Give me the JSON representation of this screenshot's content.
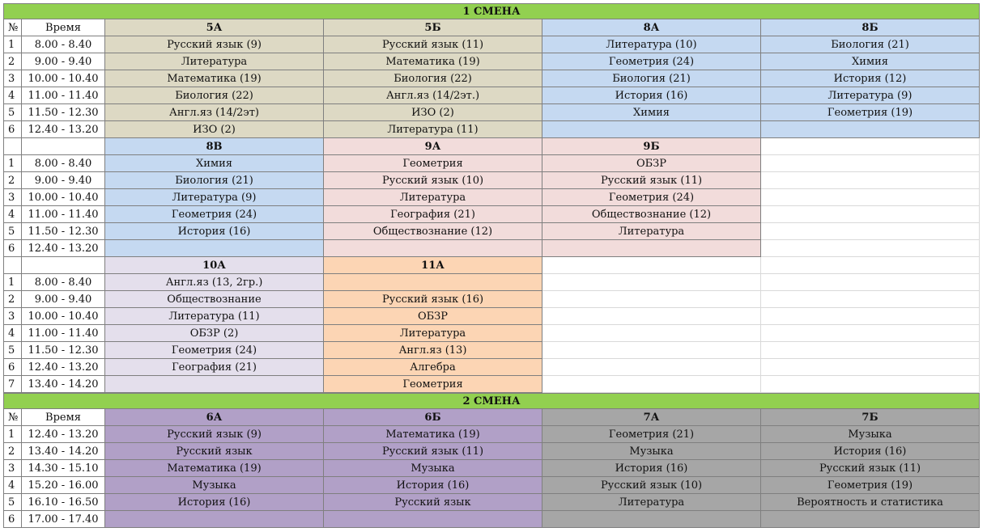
{
  "sections": [
    {
      "title": "1 СМЕНА",
      "color": "#92d050",
      "blocks": [
        {
          "number_label": "№",
          "time_label": "Время",
          "periods": [
            {
              "number": 1,
              "time": "8.00 - 8.40"
            },
            {
              "number": 2,
              "time": "9.00 - 9.40"
            },
            {
              "number": 3,
              "time": "10.00 - 10.40"
            },
            {
              "number": 4,
              "time": "11.00 - 11.40"
            },
            {
              "number": 5,
              "time": "11.50 - 12.30"
            },
            {
              "number": 6,
              "time": "12.40 - 13.20"
            }
          ],
          "classes": [
            {
              "name": "5А",
              "color": "#ddd9c4",
              "lessons": [
                "Русский язык (9)",
                "Литература",
                "Математика (19)",
                "Биология (22)",
                "Англ.яз (14/2эт)",
                "ИЗО (2)"
              ]
            },
            {
              "name": "5Б",
              "color": "#ddd9c4",
              "lessons": [
                "Русский язык (11)",
                "Математика (19)",
                "Биология (22)",
                "Англ.яз (14/2эт.)",
                "ИЗО (2)",
                "Литература (11)"
              ]
            },
            {
              "name": "8А",
              "color": "#c5d9f1",
              "lessons": [
                "Литература (10)",
                "Геометрия (24)",
                "Биология (21)",
                "История (16)",
                "Химия",
                null
              ]
            },
            {
              "name": "8Б",
              "color": "#c5d9f1",
              "lessons": [
                "Биология (21)",
                "Химия",
                "История (12)",
                "Литература (9)",
                "Геометрия (19)",
                null
              ]
            }
          ]
        },
        {
          "periods": [
            {
              "number": 1,
              "time": "8.00 - 8.40"
            },
            {
              "number": 2,
              "time": "9.00 - 9.40"
            },
            {
              "number": 3,
              "time": "10.00 - 10.40"
            },
            {
              "number": 4,
              "time": "11.00 - 11.40"
            },
            {
              "number": 5,
              "time": "11.50 - 12.30"
            },
            {
              "number": 6,
              "time": "12.40 - 13.20"
            }
          ],
          "classes": [
            {
              "name": "8В",
              "color": "#c5d9f1",
              "lessons": [
                "Химия",
                "Биология (21)",
                "Литература (9)",
                "Геометрия (24)",
                "История (16)",
                null
              ]
            },
            {
              "name": "9А",
              "color": "#f2dcdb",
              "lessons": [
                "Геометрия",
                "Русский язык (10)",
                "Литература",
                "География (21)",
                "Обществознание (12)",
                null
              ]
            },
            {
              "name": "9Б",
              "color": "#f2dcdb",
              "lessons": [
                "ОБЗР",
                "Русский язык (11)",
                "Геометрия (24)",
                "Обществознание (12)",
                "Литература",
                null
              ]
            }
          ]
        },
        {
          "periods": [
            {
              "number": 1,
              "time": "8.00 - 8.40"
            },
            {
              "number": 2,
              "time": "9.00 - 9.40"
            },
            {
              "number": 3,
              "time": "10.00 - 10.40"
            },
            {
              "number": 4,
              "time": "11.00 - 11.40"
            },
            {
              "number": 5,
              "time": "11.50 - 12.30"
            },
            {
              "number": 6,
              "time": "12.40 - 13.20"
            },
            {
              "number": 7,
              "time": "13.40 - 14.20"
            }
          ],
          "classes": [
            {
              "name": "10А",
              "color": "#e4dfec",
              "lessons": [
                "Англ.яз (13, 2гр.)",
                "Обществознание",
                "Литература (11)",
                "ОБЗР (2)",
                "Геометрия (24)",
                "География (21)",
                null
              ]
            },
            {
              "name": "11А",
              "color": "#fcd5b4",
              "lessons": [
                null,
                "Русский язык (16)",
                "ОБЗР",
                "Литература",
                "Англ.яз (13)",
                "Алгебра",
                "Геометрия"
              ]
            }
          ]
        }
      ]
    },
    {
      "title": "2 СМЕНА",
      "color": "#92d050",
      "blocks": [
        {
          "number_label": "№",
          "time_label": "Время",
          "periods": [
            {
              "number": 1,
              "time": "12.40 - 13.20"
            },
            {
              "number": 2,
              "time": "13.40 - 14.20"
            },
            {
              "number": 3,
              "time": "14.30 - 15.10"
            },
            {
              "number": 4,
              "time": "15.20 - 16.00"
            },
            {
              "number": 5,
              "time": "16.10 - 16.50"
            },
            {
              "number": 6,
              "time": "17.00 - 17.40"
            }
          ],
          "classes": [
            {
              "name": "6А",
              "color": "#b1a0c7",
              "lessons": [
                "Русский язык (9)",
                "Русский язык",
                "Математика (19)",
                "Музыка",
                "История (16)",
                null
              ]
            },
            {
              "name": "6Б",
              "color": "#b1a0c7",
              "lessons": [
                "Математика (19)",
                "Русский язык (11)",
                "Музыка",
                "История (16)",
                "Русский язык",
                null
              ]
            },
            {
              "name": "7А",
              "color": "#a6a6a6",
              "lessons": [
                "Геометрия (21)",
                "Музыка",
                "История (16)",
                "Русский язык (10)",
                "Литература",
                null
              ]
            },
            {
              "name": "7Б",
              "color": "#a6a6a6",
              "lessons": [
                "Музыка",
                "История (16)",
                "Русский язык (11)",
                "Геометрия (19)",
                "Вероятность и статистика",
                null
              ]
            }
          ]
        }
      ]
    }
  ]
}
